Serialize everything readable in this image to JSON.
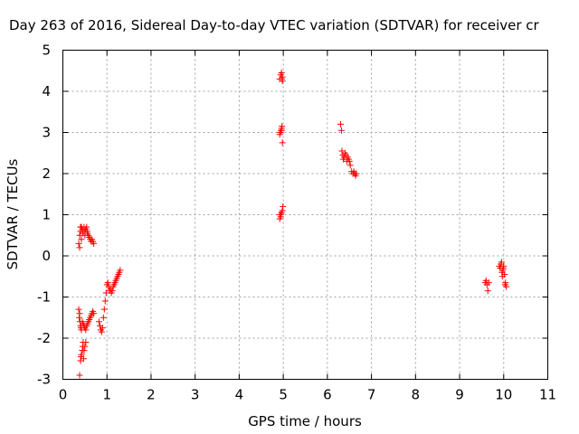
{
  "chart_data": {
    "type": "scatter",
    "title": "Day 263 of 2016, Sidereal Day-to-day VTEC variation (SDTVAR) for receiver cr",
    "xlabel": "GPS time / hours",
    "ylabel": "SDTVAR / TECUs",
    "xlim": [
      0,
      11
    ],
    "ylim": [
      -3,
      5
    ],
    "xticks": [
      "0",
      "1",
      "2",
      "3",
      "4",
      "5",
      "6",
      "7",
      "8",
      "9",
      "10",
      "11"
    ],
    "yticks": [
      "-3",
      "-2",
      "-1",
      "0",
      "1",
      "2",
      "3",
      "4",
      "5"
    ],
    "grid": true,
    "marker": "+",
    "colors": {
      "series": "#ff0000",
      "grid": "#a0a0a0",
      "axis": "#000000"
    },
    "series": [
      {
        "name": "SDTVAR",
        "x": [
          0.36,
          0.38,
          0.38,
          0.4,
          0.4,
          0.42,
          0.42,
          0.44,
          0.45,
          0.46,
          0.48,
          0.5,
          0.5,
          0.52,
          0.54,
          0.55,
          0.56,
          0.58,
          0.6,
          0.62,
          0.64,
          0.66,
          0.68,
          0.7,
          0.36,
          0.37,
          0.38,
          0.39,
          0.4,
          0.41,
          0.42,
          0.44,
          0.46,
          0.48,
          0.5,
          0.52,
          0.54,
          0.56,
          0.58,
          0.6,
          0.62,
          0.64,
          0.66,
          0.68,
          0.7,
          0.38,
          0.4,
          0.41,
          0.42,
          0.44,
          0.45,
          0.46,
          0.47,
          0.48,
          0.5,
          0.52,
          0.82,
          0.84,
          0.86,
          0.88,
          0.9,
          0.92,
          0.94,
          0.96,
          0.98,
          1.0,
          1.02,
          1.04,
          1.06,
          1.08,
          1.1,
          1.12,
          1.14,
          1.16,
          1.18,
          1.2,
          1.22,
          1.24,
          1.26,
          1.28,
          1.3,
          4.92,
          4.94,
          4.96,
          4.97,
          4.98,
          4.92,
          4.93,
          4.95,
          4.96,
          4.98,
          4.92,
          4.94,
          4.96,
          4.98,
          4.99,
          4.92,
          4.94,
          4.96,
          4.97,
          4.98,
          6.3,
          6.32,
          6.33,
          6.35,
          6.36,
          6.38,
          6.4,
          6.42,
          6.44,
          6.46,
          6.48,
          6.5,
          6.52,
          6.55,
          6.58,
          6.6,
          6.62,
          6.64,
          6.66,
          9.58,
          9.6,
          9.62,
          9.64,
          9.66,
          9.9,
          9.92,
          9.94,
          9.95,
          9.96,
          9.97,
          9.98,
          9.99,
          10.0,
          10.02,
          10.03,
          10.04,
          10.06
        ],
        "y": [
          0.3,
          0.2,
          0.5,
          0.7,
          0.6,
          0.4,
          0.7,
          0.65,
          0.6,
          0.55,
          0.7,
          0.6,
          0.5,
          0.65,
          0.7,
          0.6,
          0.55,
          0.5,
          0.45,
          0.4,
          0.35,
          0.4,
          0.35,
          0.3,
          -1.3,
          -1.5,
          -1.4,
          -1.6,
          -1.7,
          -1.75,
          -1.8,
          -1.6,
          -1.65,
          -1.7,
          -1.75,
          -1.8,
          -1.7,
          -1.65,
          -1.6,
          -1.55,
          -1.5,
          -1.45,
          -1.4,
          -1.35,
          -1.4,
          -2.9,
          -2.55,
          -2.45,
          -2.4,
          -2.3,
          -2.2,
          -2.1,
          -2.5,
          -2.3,
          -2.2,
          -2.1,
          -1.6,
          -1.7,
          -1.8,
          -1.85,
          -1.75,
          -1.5,
          -1.3,
          -1.1,
          -0.9,
          -0.7,
          -0.65,
          -0.75,
          -0.85,
          -0.8,
          -0.9,
          -0.85,
          -0.75,
          -0.7,
          -0.65,
          -0.6,
          -0.55,
          -0.5,
          -0.45,
          -0.4,
          -0.35,
          4.3,
          4.4,
          4.45,
          4.3,
          4.25,
          2.95,
          3.0,
          3.05,
          3.1,
          2.75,
          1.0,
          0.95,
          1.05,
          1.1,
          1.2,
          0.9,
          1.0,
          3.05,
          3.15,
          4.35,
          3.2,
          3.05,
          2.55,
          2.45,
          2.35,
          2.4,
          2.5,
          2.45,
          2.3,
          2.4,
          2.35,
          2.3,
          2.2,
          2.05,
          2.0,
          2.05,
          2.0,
          1.95,
          2.0,
          -0.65,
          -0.6,
          -0.7,
          -0.85,
          -0.65,
          -0.25,
          -0.3,
          -0.2,
          -0.15,
          -0.4,
          -0.5,
          -0.35,
          -0.3,
          -0.25,
          -0.45,
          -0.7,
          -0.65,
          -0.75
        ]
      }
    ]
  }
}
